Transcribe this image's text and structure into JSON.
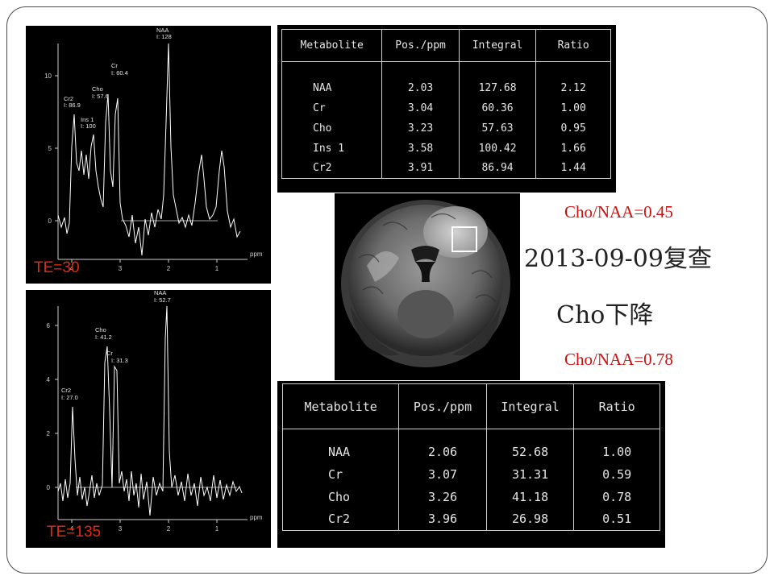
{
  "slide": {
    "ratio_1": "Cho/NAA=0.45",
    "date_text": "2013-09-09复查",
    "finding_text": "Cho下降",
    "ratio_2": "Cho/NAA=0.78"
  },
  "spectra": [
    {
      "te_label": "TE=30",
      "x_unit": "ppm",
      "x_ticks": [
        "4",
        "3",
        "2",
        "1"
      ],
      "y_ticks": [
        "10",
        "5",
        "0"
      ],
      "peaks": [
        {
          "name": "NAA",
          "value": "I: 128"
        },
        {
          "name": "Cr",
          "value": "I: 60.4"
        },
        {
          "name": "Cho",
          "value": "I: 57.6"
        },
        {
          "name": "Cr2",
          "value": "I: 86.9"
        },
        {
          "name": "Ins 1",
          "value": "I: 100"
        }
      ]
    },
    {
      "te_label": "TE=135",
      "x_unit": "ppm",
      "x_ticks": [
        "4",
        "3",
        "2",
        "1"
      ],
      "y_ticks": [
        "6",
        "4",
        "2",
        "0"
      ],
      "peaks": [
        {
          "name": "NAA",
          "value": "I: 52.7"
        },
        {
          "name": "Cho",
          "value": "I: 41.2"
        },
        {
          "name": "Cr",
          "value": "I: 31.3"
        },
        {
          "name": "Cr2",
          "value": "I: 27.0"
        }
      ]
    }
  ],
  "table_1": {
    "headers": [
      "Metabolite",
      "Pos./ppm",
      "Integral",
      "Ratio"
    ],
    "rows": [
      [
        "NAA",
        "2.03",
        "127.68",
        "2.12"
      ],
      [
        "Cr",
        "3.04",
        "60.36",
        "1.00"
      ],
      [
        "Cho",
        "3.23",
        "57.63",
        "0.95"
      ],
      [
        "Ins 1",
        "3.58",
        "100.42",
        "1.66"
      ],
      [
        "Cr2",
        "3.91",
        "86.94",
        "1.44"
      ]
    ]
  },
  "table_2": {
    "headers": [
      "Metabolite",
      "Pos./ppm",
      "Integral",
      "Ratio"
    ],
    "rows": [
      [
        "NAA",
        "2.06",
        "52.68",
        "1.00"
      ],
      [
        "Cr",
        "3.07",
        "31.31",
        "0.59"
      ],
      [
        "Cho",
        "3.26",
        "41.18",
        "0.78"
      ],
      [
        "Cr2",
        "3.96",
        "26.98",
        "0.51"
      ]
    ]
  },
  "colors": {
    "annotation_red": "#cc1111",
    "te_label_red": "#e02a12",
    "panel_bg": "#000000"
  }
}
